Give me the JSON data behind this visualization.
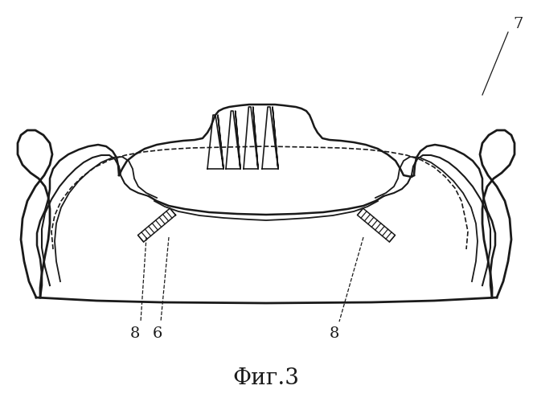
{
  "title": "Фиг.3",
  "label_7": "7",
  "label_6": "6",
  "label_8": "8",
  "label_8b": "8",
  "bg_color": "#ffffff",
  "line_color": "#1a1a1a",
  "title_fontsize": 20,
  "label_fontsize": 14,
  "fig_width": 6.63,
  "fig_height": 5.0,
  "dpi": 100
}
